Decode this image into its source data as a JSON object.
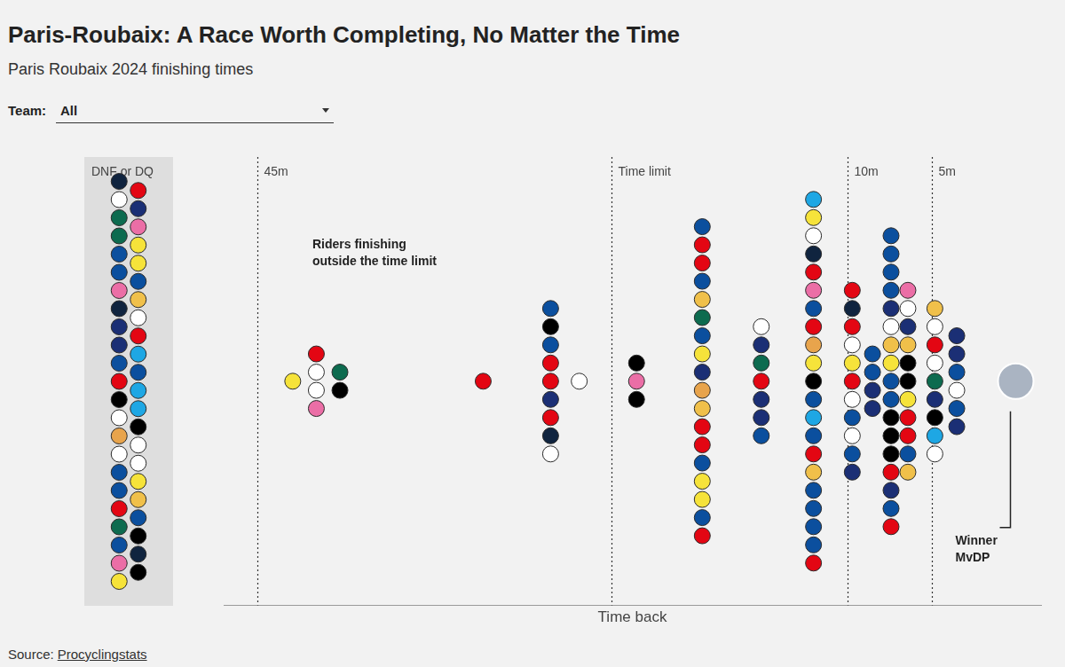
{
  "chart_data": {
    "type": "scatter",
    "title": "Paris-Roubaix: A Race Worth Completing, No Matter the Time",
    "subtitle": "Paris Roubaix 2024 finishing times",
    "filter": {
      "label": "Team:",
      "value": "All"
    },
    "x_label": "Time back",
    "xlim": [
      47,
      -1.5
    ],
    "xticks": [
      {
        "value": 45,
        "label": "45m"
      },
      {
        "value": 24,
        "label": "Time limit"
      },
      {
        "value": 10,
        "label": "10m"
      },
      {
        "value": 5,
        "label": "5m"
      }
    ],
    "grid": true,
    "tick_labels": "x",
    "marker": "circle",
    "x": [
      42.9,
      41.5,
      41.5,
      41.5,
      41.5,
      40.1,
      40.1,
      31.6,
      27.6,
      27.6,
      27.6,
      27.6,
      27.6,
      27.6,
      27.6,
      27.6,
      27.6,
      25.9,
      22.5,
      22.5,
      22.5,
      18.6,
      18.6,
      18.6,
      18.6,
      18.6,
      18.6,
      18.6,
      18.6,
      18.6,
      18.6,
      18.6,
      18.6,
      18.6,
      18.6,
      18.6,
      18.6,
      18.6,
      18.6,
      15.1,
      15.1,
      15.1,
      15.1,
      15.1,
      15.1,
      15.1,
      12,
      12,
      12,
      12,
      12,
      12,
      12,
      12,
      12,
      12,
      12,
      12,
      12,
      12,
      12,
      12,
      12,
      12,
      12,
      12,
      12,
      9.7,
      9.7,
      9.7,
      9.7,
      9.7,
      9.7,
      9.7,
      9.7,
      9.7,
      9.7,
      9.7,
      8.5,
      8.5,
      8.5,
      8.5,
      7.4,
      7.4,
      7.4,
      7.4,
      7.4,
      7.4,
      7.4,
      7.4,
      7.4,
      7.4,
      7.4,
      7.4,
      7.4,
      7.4,
      7.4,
      7.4,
      7.4,
      6.4,
      6.4,
      6.4,
      6.4,
      6.4,
      6.4,
      6.4,
      6.4,
      6.4,
      6.4,
      6.4,
      4.8,
      4.8,
      4.8,
      4.8,
      4.8,
      4.8,
      4.8,
      4.8,
      4.8,
      3.5,
      3.5,
      3.5,
      3.5,
      3.5,
      3.5
    ],
    "colors": [
      "#f6e33a",
      "#e30613",
      "#ffffff",
      "#ffffff",
      "#eb6ea6",
      "#0d6b4f",
      "#000000",
      "#e30613",
      "#0b4f9e",
      "#000000",
      "#0b4f9e",
      "#e30613",
      "#e30613",
      "#1b2f75",
      "#e30613",
      "#10243f",
      "#ffffff",
      "#ffffff",
      "#000000",
      "#eb6ea6",
      "#000000",
      "#0b4f9e",
      "#e30613",
      "#e30613",
      "#0b4f9e",
      "#f0c04a",
      "#0d6b4f",
      "#0b4f9e",
      "#f6e33a",
      "#1b2f75",
      "#e8a44c",
      "#f0c04a",
      "#e30613",
      "#e30613",
      "#0b4f9e",
      "#f6e33a",
      "#f6e33a",
      "#0b4f9e",
      "#e30613",
      "#ffffff",
      "#1b2f75",
      "#0d6b4f",
      "#e30613",
      "#1b2f75",
      "#1b2f75",
      "#0b4f9e",
      "#1ea7e4",
      "#f6e33a",
      "#ffffff",
      "#10243f",
      "#e30613",
      "#eb6ea6",
      "#0b4f9e",
      "#e30613",
      "#e8a44c",
      "#f6e33a",
      "#000000",
      "#0b4f9e",
      "#1ea7e4",
      "#0b4f9e",
      "#e30613",
      "#f0c04a",
      "#0b4f9e",
      "#0b4f9e",
      "#0b4f9e",
      "#0b4f9e",
      "#e30613",
      "#e30613",
      "#10243f",
      "#e30613",
      "#ffffff",
      "#f6e33a",
      "#e30613",
      "#ffffff",
      "#0b4f9e",
      "#ffffff",
      "#0b4f9e",
      "#1b2f75",
      "#0b4f9e",
      "#0b4f9e",
      "#1b2f75",
      "#1b2f75",
      "#0b4f9e",
      "#0b4f9e",
      "#0b4f9e",
      "#0b4f9e",
      "#1b2f75",
      "#ffffff",
      "#f0c04a",
      "#f6e33a",
      "#0b4f9e",
      "#0b4f9e",
      "#000000",
      "#000000",
      "#000000",
      "#e30613",
      "#1b2f75",
      "#0b4f9e",
      "#e30613",
      "#eb6ea6",
      "#ffffff",
      "#1b2f75",
      "#f0c04a",
      "#000000",
      "#000000",
      "#f6e33a",
      "#e30613",
      "#e30613",
      "#0b4f9e",
      "#f0c04a",
      "#f0c04a",
      "#ffffff",
      "#e30613",
      "#ffffff",
      "#0d6b4f",
      "#1b2f75",
      "#000000",
      "#1ea7e4",
      "#ffffff",
      "#1b2f75",
      "#1b2f75",
      "#0b4f9e",
      "#ffffff",
      "#0b4f9e",
      "#1b2f75"
    ],
    "dnf": {
      "label": "DNF or DQ",
      "colors": [
        "#10243f",
        "#ffffff",
        "#0d6b4f",
        "#0d6b4f",
        "#0b4f9e",
        "#0b4f9e",
        "#eb6ea6",
        "#10243f",
        "#1b2f75",
        "#1b2f75",
        "#0b4f9e",
        "#e30613",
        "#000000",
        "#ffffff",
        "#e8a44c",
        "#ffffff",
        "#0b4f9e",
        "#0b4f9e",
        "#e30613",
        "#0d6b4f",
        "#0b4f9e",
        "#eb6ea6",
        "#f6e33a",
        "#e30613",
        "#1b2f75",
        "#eb6ea6",
        "#f6e33a",
        "#f6e33a",
        "#0b4f9e",
        "#f0c04a",
        "#ffffff",
        "#e30613",
        "#1ea7e4",
        "#0b4f9e",
        "#1ea7e4",
        "#1ea7e4",
        "#000000",
        "#ffffff",
        "#ffffff",
        "#f6e33a",
        "#f0c04a",
        "#0b4f9e",
        "#000000",
        "#10243f",
        "#000000"
      ]
    },
    "winner": {
      "label": "Winner MvDP",
      "x": 0,
      "color": "#aab4c2"
    },
    "annotation": "Riders finishing outside the time limit",
    "source_label": "Source:",
    "source": "Procyclingstats"
  }
}
